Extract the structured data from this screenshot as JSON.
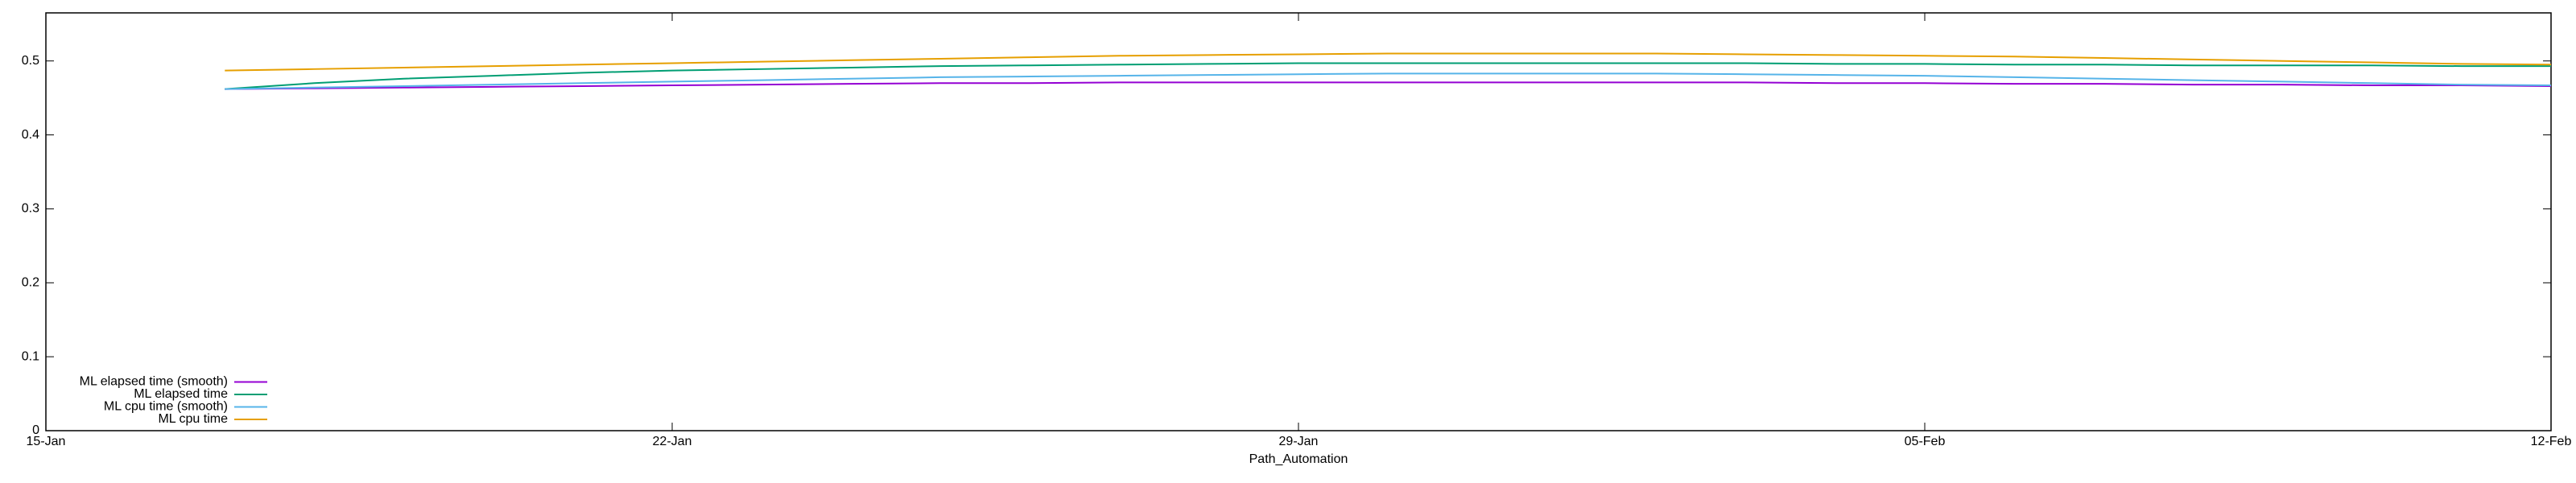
{
  "chart_data": {
    "type": "line",
    "x_label": "Path_Automation",
    "x": [
      "17-Jan",
      "18-Jan",
      "19-Jan",
      "20-Jan",
      "21-Jan",
      "22-Jan",
      "23-Jan",
      "24-Jan",
      "25-Jan",
      "26-Jan",
      "27-Jan",
      "28-Jan",
      "29-Jan",
      "30-Jan",
      "31-Jan",
      "01-Feb",
      "02-Feb",
      "03-Feb",
      "04-Feb",
      "05-Feb",
      "06-Feb",
      "07-Feb",
      "08-Feb",
      "09-Feb",
      "10-Feb",
      "11-Feb",
      "12-Feb"
    ],
    "series": [
      {
        "name": "ML elapsed time (smooth)",
        "color": "#9400d3",
        "values": [
          0.462,
          0.463,
          0.464,
          0.465,
          0.466,
          0.467,
          0.468,
          0.469,
          0.47,
          0.47,
          0.471,
          0.471,
          0.471,
          0.471,
          0.471,
          0.471,
          0.471,
          0.471,
          0.47,
          0.47,
          0.469,
          0.469,
          0.468,
          0.468,
          0.467,
          0.467,
          0.466
        ]
      },
      {
        "name": "ML elapsed time",
        "color": "#009e73",
        "values": [
          0.462,
          0.47,
          0.476,
          0.48,
          0.484,
          0.487,
          0.489,
          0.491,
          0.493,
          0.494,
          0.495,
          0.496,
          0.497,
          0.497,
          0.497,
          0.497,
          0.497,
          0.497,
          0.496,
          0.496,
          0.495,
          0.495,
          0.494,
          0.494,
          0.494,
          0.493,
          0.493
        ]
      },
      {
        "name": "ML cpu time (smooth)",
        "color": "#56b4e9",
        "values": [
          0.462,
          0.464,
          0.466,
          0.468,
          0.47,
          0.472,
          0.474,
          0.476,
          0.478,
          0.479,
          0.48,
          0.481,
          0.482,
          0.483,
          0.483,
          0.483,
          0.483,
          0.482,
          0.481,
          0.48,
          0.478,
          0.476,
          0.474,
          0.472,
          0.47,
          0.468,
          0.467
        ]
      },
      {
        "name": "ML cpu time",
        "color": "#e69f00",
        "values": [
          0.487,
          0.489,
          0.491,
          0.493,
          0.495,
          0.497,
          0.499,
          0.501,
          0.503,
          0.505,
          0.507,
          0.508,
          0.509,
          0.51,
          0.51,
          0.51,
          0.51,
          0.509,
          0.508,
          0.507,
          0.506,
          0.504,
          0.502,
          0.5,
          0.498,
          0.496,
          0.495
        ]
      }
    ],
    "xlim": [
      "15-Jan",
      "12-Feb"
    ],
    "xticks": [
      "15-Jan",
      "22-Jan",
      "29-Jan",
      "05-Feb",
      "12-Feb"
    ],
    "ylim": [
      0,
      0.565
    ],
    "yticks": [
      0,
      0.1,
      0.2,
      0.3,
      0.4,
      0.5
    ],
    "grid": false,
    "legend": "bottom-left"
  }
}
